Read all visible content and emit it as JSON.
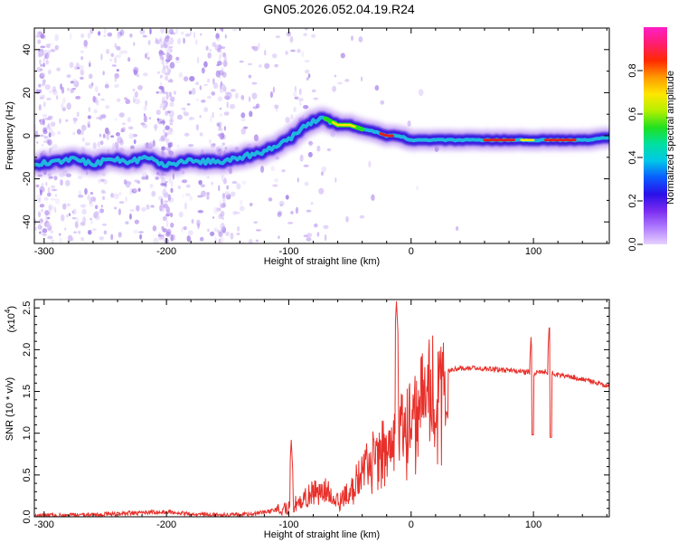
{
  "figure": {
    "title": "GN05.2026.052.04.19.R24"
  },
  "colors": {
    "axis": "#000000",
    "snr_line": "#e8302a",
    "ridge_outer": "#b58cf0",
    "ridge_mid": "#3a1ee0",
    "ridge_core": "#1ec8e0",
    "ridge_hot": "#e02020"
  },
  "chart_data": [
    {
      "type": "heatmap",
      "title": "GN05.2026.052.04.19.R24",
      "xlabel": "Height of straight line (km)",
      "ylabel": "Frequency (Hz)",
      "xlim": [
        -308,
        162
      ],
      "ylim": [
        -50,
        50
      ],
      "xticks": [
        -300,
        -200,
        -100,
        0,
        100
      ],
      "yticks": [
        -40,
        -20,
        0,
        20,
        40
      ],
      "colorbar": {
        "label": "Normalized spectral amplitude",
        "range": [
          0.0,
          1.0
        ],
        "ticks": [
          0.0,
          0.2,
          0.4,
          0.6,
          0.8
        ],
        "colormap": [
          "#e6d2ff",
          "#b07cff",
          "#7a2cf0",
          "#2a10e8",
          "#0a5cff",
          "#00c8e8",
          "#00e0a0",
          "#20e020",
          "#b4f000",
          "#ffe600",
          "#ff9a00",
          "#ff2a00",
          "#ff1e6e",
          "#ff1ec8"
        ]
      },
      "ridge": {
        "x": [
          -305,
          -290,
          -275,
          -260,
          -245,
          -230,
          -215,
          -200,
          -185,
          -170,
          -155,
          -140,
          -125,
          -110,
          -100,
          -90,
          -80,
          -70,
          -60,
          -50,
          -40,
          -30,
          -20,
          -10,
          0,
          20,
          40,
          60,
          80,
          100,
          120,
          140,
          162
        ],
        "y": [
          -13,
          -12,
          -11,
          -13,
          -11,
          -12,
          -10,
          -14,
          -12,
          -12,
          -12,
          -10,
          -8,
          -5,
          -2,
          3,
          7,
          8,
          5,
          5,
          3,
          2,
          0,
          0,
          -2,
          -2,
          -2,
          -2,
          -2,
          -2,
          -2,
          -2,
          -1
        ]
      }
    },
    {
      "type": "line",
      "xlabel": "Height of straight line (km)",
      "ylabel": "SNR (10 * v/v)",
      "scale_label": "(x10",
      "scale_exponent": "4",
      "xlim": [
        -308,
        162
      ],
      "ylim": [
        0,
        2.6
      ],
      "xticks": [
        -300,
        -200,
        -100,
        0,
        100
      ],
      "yticks": [
        0.0,
        0.5,
        1.0,
        1.5,
        2.0,
        2.5
      ],
      "series": [
        {
          "name": "SNR",
          "x": [
            -308,
            -280,
            -250,
            -220,
            -200,
            -180,
            -150,
            -130,
            -110,
            -100,
            -90,
            -80,
            -70,
            -60,
            -50,
            -40,
            -30,
            -20,
            -10,
            0,
            10,
            20,
            30,
            40,
            50,
            70,
            90,
            100,
            110,
            120,
            140,
            162
          ],
          "y": [
            0.01,
            0.02,
            0.03,
            0.05,
            0.06,
            0.03,
            0.02,
            0.03,
            0.08,
            0.12,
            0.18,
            0.3,
            0.32,
            0.18,
            0.3,
            0.55,
            0.75,
            0.95,
            1.1,
            1.3,
            1.45,
            1.65,
            1.75,
            1.78,
            1.78,
            1.76,
            1.74,
            1.72,
            1.74,
            1.7,
            1.65,
            1.56
          ]
        }
      ],
      "spikes": [
        {
          "x": -98,
          "peak": 0.92
        },
        {
          "x": -12,
          "peak": 2.58
        },
        {
          "x": 98,
          "peak": 2.15,
          "dip": 0.98
        },
        {
          "x": 113,
          "peak": 2.32,
          "dip": 0.95
        }
      ]
    }
  ]
}
